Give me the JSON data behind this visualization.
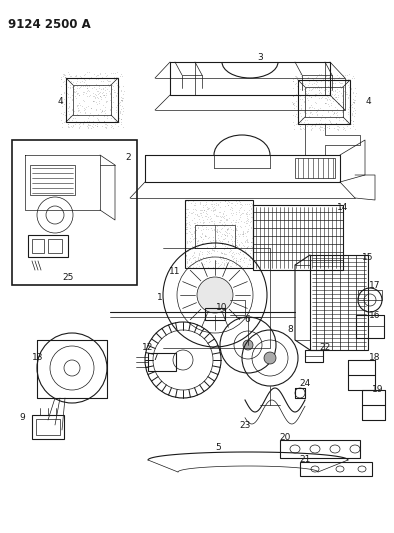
{
  "title": "9124 2500 A",
  "bg_color": "#ffffff",
  "line_color": "#1a1a1a",
  "title_fontsize": 8.5,
  "title_fontweight": "bold",
  "fig_width": 3.94,
  "fig_height": 5.33,
  "dpi": 100
}
